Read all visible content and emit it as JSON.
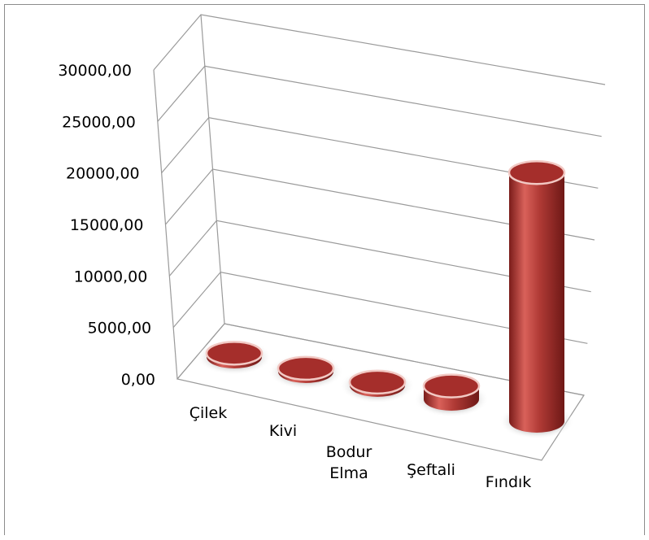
{
  "chart_data": {
    "type": "bar",
    "bar_shape": "cylinder-3d",
    "categories": [
      "Çilek",
      "Kivi",
      "Bodur Elma",
      "Şeftali",
      "Fındık"
    ],
    "values": [
      400,
      350,
      350,
      1400,
      26100
    ],
    "ylim": [
      0,
      30000
    ],
    "y_ticks": [
      "0,00",
      "5000,00",
      "10000,00",
      "15000,00",
      "20000,00",
      "25000,00",
      "30000,00"
    ],
    "grid": true,
    "legend": "none",
    "colors": {
      "bar": "#b03a35",
      "bar_dark": "#7a1c1a",
      "bar_light": "#d9615a",
      "bar_top": "#a52e2b",
      "bar_top_rim": "#f2c9c4",
      "grid": "#9a9a9a",
      "shadow": "#c8c8c8"
    }
  }
}
